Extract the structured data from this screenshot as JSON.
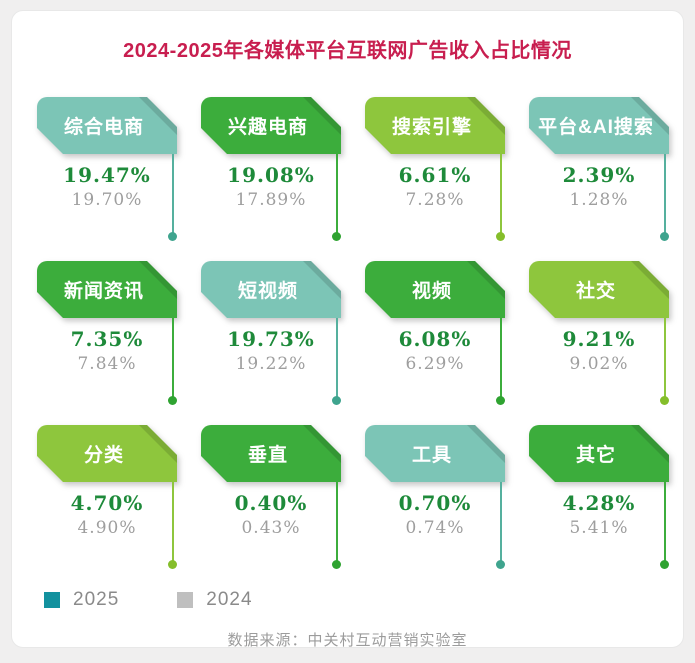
{
  "title": "2024-2025年各媒体平台互联网广告收入占比情况",
  "colors": {
    "title_text": "#C81E4F",
    "banner_teal": "#7CC5B6",
    "banner_green": "#3CAD3C",
    "banner_lime": "#8EC63D",
    "value_2025_text": "#1E8A3A",
    "value_2024_text": "#9E9E9E",
    "legend_2025_swatch": "#12919E",
    "legend_2024_swatch": "#BFBFBF",
    "card_background": "#FFFFFF",
    "page_background": "#F0EFEF"
  },
  "cards": [
    {
      "label": "综合电商",
      "color": "teal",
      "v2025": "19.47%",
      "v2024": "19.70%"
    },
    {
      "label": "兴趣电商",
      "color": "green",
      "v2025": "19.08%",
      "v2024": "17.89%"
    },
    {
      "label": "搜索引擎",
      "color": "lime",
      "v2025": "6.61%",
      "v2024": "7.28%"
    },
    {
      "label": "平台&AI搜索",
      "color": "teal",
      "v2025": "2.39%",
      "v2024": "1.28%"
    },
    {
      "label": "新闻资讯",
      "color": "green",
      "v2025": "7.35%",
      "v2024": "7.84%"
    },
    {
      "label": "短视频",
      "color": "teal",
      "v2025": "19.73%",
      "v2024": "19.22%"
    },
    {
      "label": "视频",
      "color": "green",
      "v2025": "6.08%",
      "v2024": "6.29%"
    },
    {
      "label": "社交",
      "color": "lime",
      "v2025": "9.21%",
      "v2024": "9.02%"
    },
    {
      "label": "分类",
      "color": "lime",
      "v2025": "4.70%",
      "v2024": "4.90%"
    },
    {
      "label": "垂直",
      "color": "green",
      "v2025": "0.40%",
      "v2024": "0.43%"
    },
    {
      "label": "工具",
      "color": "teal",
      "v2025": "0.70%",
      "v2024": "0.74%"
    },
    {
      "label": "其它",
      "color": "green",
      "v2025": "4.28%",
      "v2024": "5.41%"
    }
  ],
  "legend": [
    {
      "label": "2025",
      "swatch_color": "#12919E"
    },
    {
      "label": "2024",
      "swatch_color": "#BFBFBF"
    }
  ],
  "source": "数据来源：中关村互动营销实验室",
  "chart_data": {
    "type": "bar",
    "title": "2024-2025年各媒体平台互联网广告收入占比情况",
    "categories": [
      "综合电商",
      "兴趣电商",
      "搜索引擎",
      "平台&AI搜索",
      "新闻资讯",
      "短视频",
      "视频",
      "社交",
      "分类",
      "垂直",
      "工具",
      "其它"
    ],
    "series": [
      {
        "name": "2025",
        "values": [
          19.47,
          19.08,
          6.61,
          2.39,
          7.35,
          19.73,
          6.08,
          9.21,
          4.7,
          0.4,
          0.7,
          4.28
        ]
      },
      {
        "name": "2024",
        "values": [
          19.7,
          17.89,
          7.28,
          1.28,
          7.84,
          19.22,
          6.29,
          9.02,
          4.9,
          0.43,
          0.74,
          5.41
        ]
      }
    ],
    "unit": "%",
    "xlabel": "",
    "ylabel": "",
    "legend_position": "bottom-left",
    "grid": false,
    "annotation": "数据来源：中关村互动营销实验室"
  }
}
